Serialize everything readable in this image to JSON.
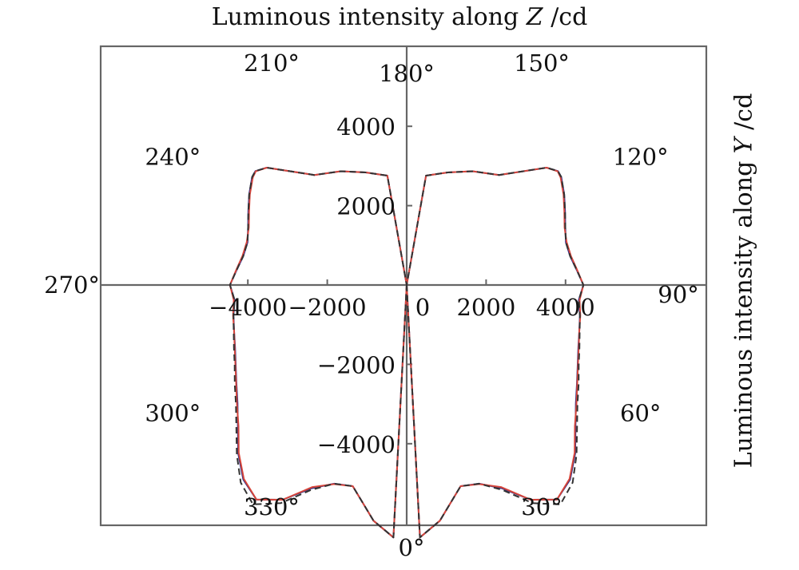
{
  "chart_data": {
    "type": "polar-line",
    "title_parts": [
      "Luminous intensity along ",
      "Z",
      " /cd"
    ],
    "ylabel_parts": [
      "Luminous intensity along ",
      "Y",
      " /cd"
    ],
    "xlabel": "",
    "x_ticks": [
      -4000,
      -2000,
      0,
      2000,
      4000
    ],
    "x_tick_labels": [
      "−4000",
      "−2000",
      "0",
      "2000",
      "4000"
    ],
    "y_ticks": [
      4000,
      2000,
      -2000,
      -4000
    ],
    "y_tick_labels": [
      "4000",
      "2000",
      "−2000",
      "−4000"
    ],
    "xlim": [
      -7500,
      7500
    ],
    "ylim": [
      -6000,
      5500
    ],
    "angle_labels": [
      {
        "deg": 0,
        "text": "0°"
      },
      {
        "deg": 30,
        "text": "30°"
      },
      {
        "deg": 60,
        "text": "60°"
      },
      {
        "deg": 90,
        "text": "90°"
      },
      {
        "deg": 120,
        "text": "120°"
      },
      {
        "deg": 150,
        "text": "150°"
      },
      {
        "deg": 180,
        "text": "180°"
      },
      {
        "deg": 210,
        "text": "210°"
      },
      {
        "deg": 240,
        "text": "240°"
      },
      {
        "deg": 270,
        "text": "270°"
      },
      {
        "deg": 300,
        "text": "300°"
      },
      {
        "deg": 330,
        "text": "330°"
      }
    ],
    "series": [
      {
        "color": "#2a2f8a",
        "dash": "solid",
        "points": [
          [
            0,
            0
          ],
          [
            3,
            6370
          ],
          [
            8,
            6000
          ],
          [
            15,
            5250
          ],
          [
            20,
            5330
          ],
          [
            25,
            5650
          ],
          [
            30,
            6250
          ],
          [
            35,
            6600
          ],
          [
            40,
            6400
          ],
          [
            45,
            6000
          ],
          [
            50,
            5550
          ],
          [
            55,
            5200
          ],
          [
            60,
            4950
          ],
          [
            65,
            4750
          ],
          [
            70,
            4600
          ],
          [
            75,
            4500
          ],
          [
            80,
            4430
          ],
          [
            85,
            4350
          ],
          [
            90,
            4450
          ],
          [
            95,
            4300
          ],
          [
            100,
            4180
          ],
          [
            105,
            4150
          ],
          [
            110,
            4250
          ],
          [
            115,
            4400
          ],
          [
            120,
            4580
          ],
          [
            125,
            4750
          ],
          [
            127,
            4770
          ],
          [
            130,
            4600
          ],
          [
            140,
            3620
          ],
          [
            150,
            3310
          ],
          [
            160,
            3020
          ],
          [
            170,
            2800
          ],
          [
            180,
            0
          ],
          [
            190,
            2800
          ],
          [
            200,
            3020
          ],
          [
            210,
            3310
          ],
          [
            220,
            3620
          ],
          [
            230,
            4600
          ],
          [
            233,
            4770
          ],
          [
            235,
            4750
          ],
          [
            240,
            4580
          ],
          [
            245,
            4400
          ],
          [
            250,
            4250
          ],
          [
            255,
            4150
          ],
          [
            260,
            4180
          ],
          [
            265,
            4300
          ],
          [
            270,
            4450
          ],
          [
            275,
            4350
          ],
          [
            280,
            4430
          ],
          [
            285,
            4500
          ],
          [
            290,
            4600
          ],
          [
            295,
            4750
          ],
          [
            300,
            4950
          ],
          [
            305,
            5200
          ],
          [
            310,
            5550
          ],
          [
            315,
            6000
          ],
          [
            320,
            6400
          ],
          [
            325,
            6600
          ],
          [
            330,
            6250
          ],
          [
            335,
            5650
          ],
          [
            340,
            5330
          ],
          [
            345,
            5250
          ],
          [
            352,
            6000
          ],
          [
            357,
            6370
          ],
          [
            360,
            0
          ]
        ]
      },
      {
        "color": "#d6453a",
        "dash": "solid",
        "points": [
          [
            0,
            0
          ],
          [
            3,
            6370
          ],
          [
            8,
            6000
          ],
          [
            15,
            5250
          ],
          [
            20,
            5340
          ],
          [
            25,
            5620
          ],
          [
            30,
            6250
          ],
          [
            35,
            6600
          ],
          [
            40,
            6380
          ],
          [
            45,
            5980
          ],
          [
            50,
            5530
          ],
          [
            55,
            5220
          ],
          [
            60,
            4960
          ],
          [
            65,
            4760
          ],
          [
            70,
            4610
          ],
          [
            75,
            4500
          ],
          [
            80,
            4440
          ],
          [
            85,
            4370
          ],
          [
            90,
            4450
          ],
          [
            95,
            4310
          ],
          [
            100,
            4200
          ],
          [
            105,
            4170
          ],
          [
            110,
            4230
          ],
          [
            115,
            4380
          ],
          [
            120,
            4560
          ],
          [
            125,
            4730
          ],
          [
            127,
            4760
          ],
          [
            130,
            4600
          ],
          [
            140,
            3620
          ],
          [
            150,
            3310
          ],
          [
            160,
            3020
          ],
          [
            170,
            2800
          ],
          [
            180,
            0
          ],
          [
            190,
            2800
          ],
          [
            200,
            3020
          ],
          [
            210,
            3310
          ],
          [
            220,
            3620
          ],
          [
            230,
            4600
          ],
          [
            233,
            4760
          ],
          [
            235,
            4730
          ],
          [
            240,
            4560
          ],
          [
            245,
            4380
          ],
          [
            250,
            4230
          ],
          [
            255,
            4170
          ],
          [
            260,
            4200
          ],
          [
            265,
            4310
          ],
          [
            270,
            4450
          ],
          [
            275,
            4370
          ],
          [
            280,
            4440
          ],
          [
            285,
            4500
          ],
          [
            290,
            4610
          ],
          [
            295,
            4760
          ],
          [
            300,
            4960
          ],
          [
            305,
            5220
          ],
          [
            310,
            5530
          ],
          [
            315,
            5980
          ],
          [
            320,
            6380
          ],
          [
            325,
            6600
          ],
          [
            330,
            6250
          ],
          [
            335,
            5620
          ],
          [
            340,
            5340
          ],
          [
            345,
            5250
          ],
          [
            352,
            6000
          ],
          [
            357,
            6370
          ],
          [
            360,
            0
          ]
        ]
      },
      {
        "color": "#333333",
        "dash": "8,5",
        "points": [
          [
            0,
            0
          ],
          [
            3,
            6370
          ],
          [
            8,
            6000
          ],
          [
            15,
            5250
          ],
          [
            20,
            5330
          ],
          [
            25,
            5700
          ],
          [
            30,
            6350
          ],
          [
            35,
            6750
          ],
          [
            40,
            6500
          ],
          [
            45,
            6050
          ],
          [
            50,
            5600
          ],
          [
            55,
            5250
          ],
          [
            60,
            5000
          ],
          [
            65,
            4780
          ],
          [
            70,
            4630
          ],
          [
            75,
            4510
          ],
          [
            80,
            4430
          ],
          [
            85,
            4350
          ],
          [
            90,
            4450
          ],
          [
            95,
            4300
          ],
          [
            100,
            4180
          ],
          [
            105,
            4150
          ],
          [
            110,
            4250
          ],
          [
            115,
            4400
          ],
          [
            120,
            4580
          ],
          [
            125,
            4750
          ],
          [
            127,
            4770
          ],
          [
            130,
            4600
          ],
          [
            140,
            3620
          ],
          [
            150,
            3310
          ],
          [
            160,
            3020
          ],
          [
            170,
            2800
          ],
          [
            180,
            0
          ],
          [
            190,
            2800
          ],
          [
            200,
            3020
          ],
          [
            210,
            3310
          ],
          [
            220,
            3620
          ],
          [
            230,
            4600
          ],
          [
            233,
            4770
          ],
          [
            235,
            4750
          ],
          [
            240,
            4580
          ],
          [
            245,
            4400
          ],
          [
            250,
            4250
          ],
          [
            255,
            4150
          ],
          [
            260,
            4180
          ],
          [
            265,
            4300
          ],
          [
            270,
            4450
          ],
          [
            275,
            4350
          ],
          [
            280,
            4430
          ],
          [
            285,
            4510
          ],
          [
            290,
            4630
          ],
          [
            295,
            4780
          ],
          [
            300,
            5000
          ],
          [
            305,
            5250
          ],
          [
            310,
            5600
          ],
          [
            315,
            6050
          ],
          [
            320,
            6500
          ],
          [
            325,
            6750
          ],
          [
            330,
            6350
          ],
          [
            335,
            5700
          ],
          [
            340,
            5330
          ],
          [
            345,
            5250
          ],
          [
            352,
            6000
          ],
          [
            357,
            6370
          ],
          [
            360,
            0
          ]
        ]
      }
    ]
  }
}
